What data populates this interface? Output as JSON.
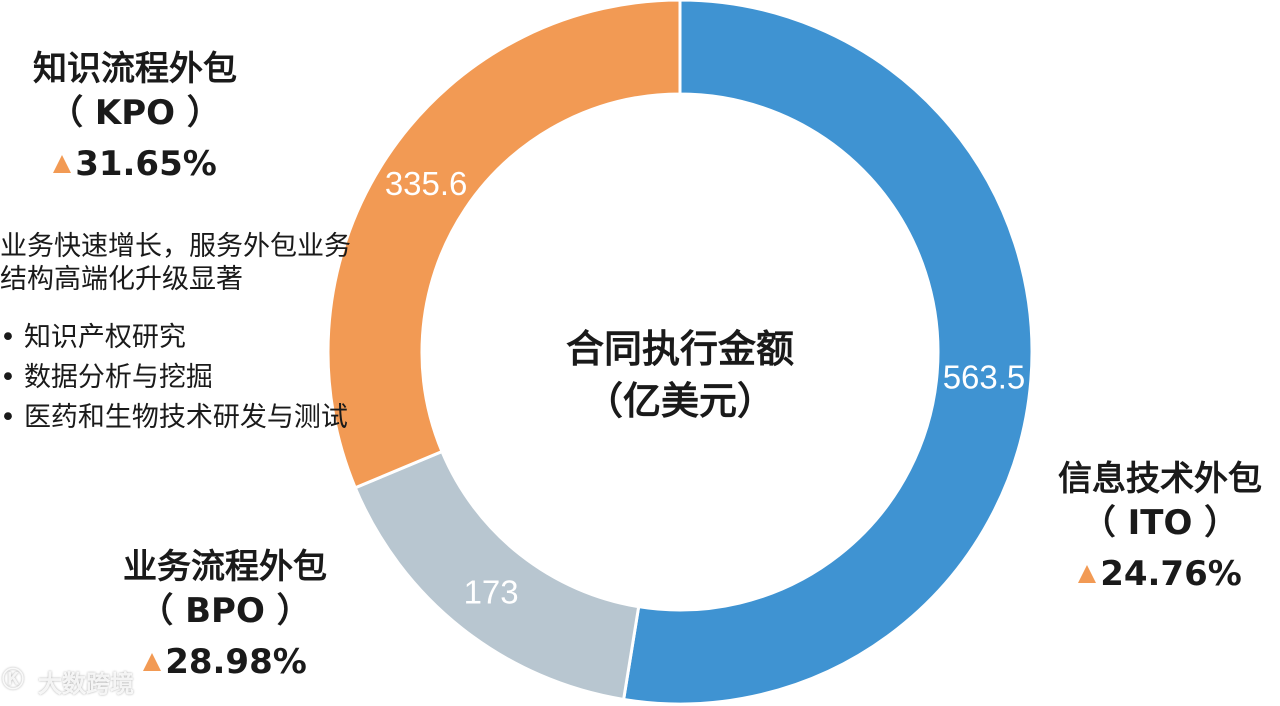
{
  "chart_data": {
    "type": "pie",
    "style": "donut",
    "center_title": [
      "合同执行金额",
      "（亿美元）"
    ],
    "slices": [
      {
        "key": "ito",
        "value": 563.5,
        "color": "#3f93d2"
      },
      {
        "key": "bpo",
        "value": 173,
        "color": "#b8c6d0"
      },
      {
        "key": "kpo",
        "value": 335.6,
        "color": "#f29a54"
      }
    ]
  },
  "categories": {
    "kpo": {
      "title": "知识流程外包",
      "abbr": "（ KPO ）",
      "growth": "31.65%"
    },
    "ito": {
      "title": "信息技术外包",
      "abbr": "（ ITO ）",
      "growth": "24.76%"
    },
    "bpo": {
      "title": "业务流程外包",
      "abbr": "（ BPO ）",
      "growth": "28.98%"
    }
  },
  "description": {
    "lines": [
      "业务快速增长，服务外包业务",
      "结构高端化升级显著"
    ],
    "bullets": [
      "知识产权研究",
      "数据分析与挖掘",
      "医药和生物技术研发与测试"
    ]
  },
  "growth_marker_color": "#f29a54",
  "watermark": {
    "logo": "Ⓚ",
    "text": "大数跨境"
  }
}
